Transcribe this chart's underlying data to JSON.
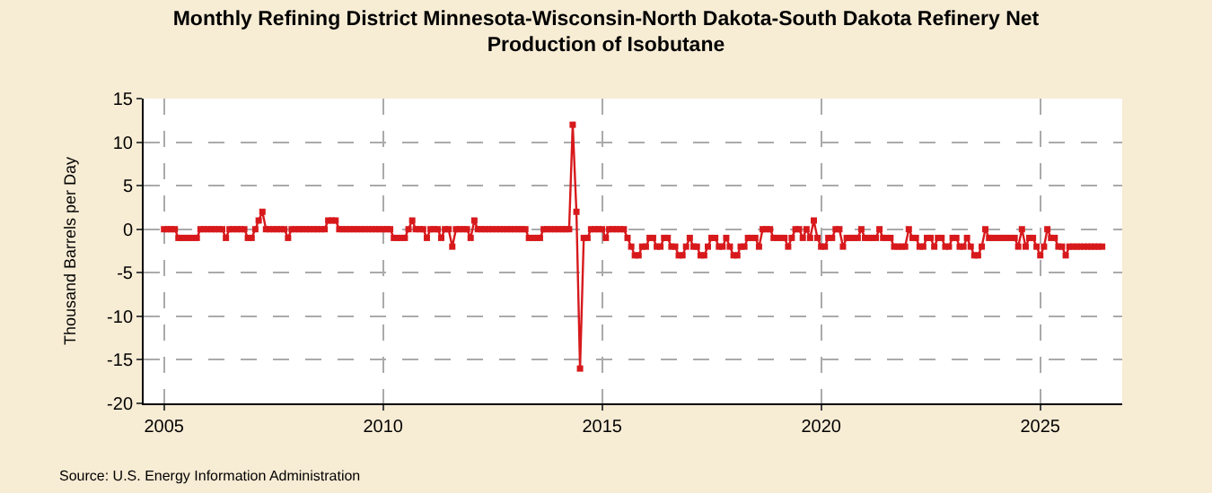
{
  "chart_data": {
    "type": "line",
    "title": "Monthly Refining District Minnesota-Wisconsin-North Dakota-South Dakota Refinery Net Production of Isobutane",
    "ylabel": "Thousand Barrels per Day",
    "annotations": [
      "Source: U.S. Energy Information Administration"
    ],
    "x": [
      "2005-01",
      "2005-02",
      "2005-03",
      "2005-04",
      "2005-05",
      "2005-06",
      "2005-07",
      "2005-08",
      "2005-09",
      "2005-10",
      "2005-11",
      "2005-12",
      "2006-01",
      "2006-02",
      "2006-03",
      "2006-04",
      "2006-05",
      "2006-06",
      "2006-07",
      "2006-08",
      "2006-09",
      "2006-10",
      "2006-11",
      "2006-12",
      "2007-01",
      "2007-02",
      "2007-03",
      "2007-04",
      "2007-05",
      "2007-06",
      "2007-07",
      "2007-08",
      "2007-09",
      "2007-10",
      "2007-11",
      "2007-12",
      "2008-01",
      "2008-02",
      "2008-03",
      "2008-04",
      "2008-05",
      "2008-06",
      "2008-07",
      "2008-08",
      "2008-09",
      "2008-10",
      "2008-11",
      "2008-12",
      "2009-01",
      "2009-02",
      "2009-03",
      "2009-04",
      "2009-05",
      "2009-06",
      "2009-07",
      "2009-08",
      "2009-09",
      "2009-10",
      "2009-11",
      "2009-12",
      "2010-01",
      "2010-02",
      "2010-03",
      "2010-04",
      "2010-05",
      "2010-06",
      "2010-07",
      "2010-08",
      "2010-09",
      "2010-10",
      "2010-11",
      "2010-12",
      "2011-01",
      "2011-02",
      "2011-03",
      "2011-04",
      "2011-05",
      "2011-06",
      "2011-07",
      "2011-08",
      "2011-09",
      "2011-10",
      "2011-11",
      "2011-12",
      "2012-01",
      "2012-02",
      "2012-03",
      "2012-04",
      "2012-05",
      "2012-06",
      "2012-07",
      "2012-08",
      "2012-09",
      "2012-10",
      "2012-11",
      "2012-12",
      "2013-01",
      "2013-02",
      "2013-03",
      "2013-04",
      "2013-05",
      "2013-06",
      "2013-07",
      "2013-08",
      "2013-09",
      "2013-10",
      "2013-11",
      "2013-12",
      "2014-01",
      "2014-02",
      "2014-03",
      "2014-04",
      "2014-05",
      "2014-06",
      "2014-07",
      "2014-08",
      "2014-09",
      "2014-10",
      "2014-11",
      "2014-12",
      "2015-01",
      "2015-02",
      "2015-03",
      "2015-04",
      "2015-05",
      "2015-06",
      "2015-07",
      "2015-08",
      "2015-09",
      "2015-10",
      "2015-11",
      "2015-12",
      "2016-01",
      "2016-02",
      "2016-03",
      "2016-04",
      "2016-05",
      "2016-06",
      "2016-07",
      "2016-08",
      "2016-09",
      "2016-10",
      "2016-11",
      "2016-12",
      "2017-01",
      "2017-02",
      "2017-03",
      "2017-04",
      "2017-05",
      "2017-06",
      "2017-07",
      "2017-08",
      "2017-09",
      "2017-10",
      "2017-11",
      "2017-12",
      "2018-01",
      "2018-02",
      "2018-03",
      "2018-04",
      "2018-05",
      "2018-06",
      "2018-07",
      "2018-08",
      "2018-09",
      "2018-10",
      "2018-11",
      "2018-12",
      "2019-01",
      "2019-02",
      "2019-03",
      "2019-04",
      "2019-05",
      "2019-06",
      "2019-07",
      "2019-08",
      "2019-09",
      "2019-10",
      "2019-11",
      "2019-12",
      "2020-01",
      "2020-02",
      "2020-03",
      "2020-04",
      "2020-05",
      "2020-06",
      "2020-07",
      "2020-08",
      "2020-09",
      "2020-10",
      "2020-11",
      "2020-12",
      "2021-01",
      "2021-02",
      "2021-03",
      "2021-04",
      "2021-05",
      "2021-06",
      "2021-07",
      "2021-08",
      "2021-09",
      "2021-10",
      "2021-11",
      "2021-12",
      "2022-01",
      "2022-02",
      "2022-03",
      "2022-04",
      "2022-05",
      "2022-06",
      "2022-07",
      "2022-08",
      "2022-09",
      "2022-10",
      "2022-11",
      "2022-12",
      "2023-01",
      "2023-02",
      "2023-03",
      "2023-04",
      "2023-05",
      "2023-06",
      "2023-07",
      "2023-08",
      "2023-09",
      "2023-10",
      "2023-11",
      "2023-12",
      "2024-01",
      "2024-02",
      "2024-03",
      "2024-04",
      "2024-05",
      "2024-06",
      "2024-07",
      "2024-08",
      "2024-09",
      "2024-10",
      "2024-11",
      "2024-12",
      "2025-01",
      "2025-02",
      "2025-03",
      "2025-04",
      "2025-05",
      "2025-06",
      "2025-07",
      "2025-08",
      "2025-09",
      "2025-10",
      "2025-11",
      "2025-12",
      "2026-01",
      "2026-02",
      "2026-03",
      "2026-04",
      "2026-05",
      "2026-06"
    ],
    "series": [
      {
        "color": "#d7191c",
        "values": [
          0,
          0,
          0,
          0,
          -1,
          -1,
          -1,
          -1,
          -1,
          -1,
          0,
          0,
          0,
          0,
          0,
          0,
          0,
          -1,
          0,
          0,
          0,
          0,
          0,
          -1,
          -1,
          0,
          1,
          2,
          0,
          0,
          0,
          0,
          0,
          0,
          -1,
          0,
          0,
          0,
          0,
          0,
          0,
          0,
          0,
          0,
          0,
          1,
          1,
          1,
          0,
          0,
          0,
          0,
          0,
          0,
          0,
          0,
          0,
          0,
          0,
          0,
          0,
          0,
          0,
          -1,
          -1,
          -1,
          -1,
          0,
          1,
          0,
          0,
          0,
          -1,
          0,
          0,
          0,
          -1,
          0,
          0,
          -2,
          0,
          0,
          0,
          0,
          -1,
          1,
          0,
          0,
          0,
          0,
          0,
          0,
          0,
          0,
          0,
          0,
          0,
          0,
          0,
          0,
          -1,
          -1,
          -1,
          -1,
          0,
          0,
          0,
          0,
          0,
          0,
          0,
          0,
          12,
          2,
          -16,
          -1,
          -1,
          0,
          0,
          0,
          0,
          -1,
          0,
          0,
          0,
          0,
          0,
          -1,
          -2,
          -3,
          -3,
          -2,
          -2,
          -1,
          -1,
          -2,
          -2,
          -1,
          -1,
          -2,
          -2,
          -3,
          -3,
          -2,
          -1,
          -2,
          -2,
          -3,
          -3,
          -2,
          -1,
          -1,
          -2,
          -2,
          -1,
          -2,
          -3,
          -3,
          -2,
          -2,
          -1,
          -1,
          -1,
          -2,
          0,
          0,
          0,
          -1,
          -1,
          -1,
          -1,
          -2,
          -1,
          0,
          0,
          -1,
          0,
          -1,
          1,
          -1,
          -2,
          -2,
          -1,
          -1,
          0,
          0,
          -2,
          -1,
          -1,
          -1,
          -1,
          0,
          -1,
          -1,
          -1,
          -1,
          0,
          -1,
          -1,
          -1,
          -2,
          -2,
          -2,
          -2,
          0,
          -1,
          -1,
          -2,
          -2,
          -1,
          -1,
          -2,
          -1,
          -1,
          -2,
          -2,
          -1,
          -1,
          -2,
          -2,
          -1,
          -2,
          -3,
          -3,
          -2,
          0,
          -1,
          -1,
          -1,
          -1,
          -1,
          -1,
          -1,
          -1,
          -2,
          0,
          -2,
          -1,
          -1,
          -2,
          -3,
          -2,
          0,
          -1,
          -1,
          -2,
          -2,
          -3,
          -2,
          -2,
          -2,
          -2,
          -2,
          -2,
          -2,
          -2,
          -2,
          -2
        ]
      }
    ],
    "xlim": [
      "2004-07-15",
      "2026-11-15"
    ],
    "xticks": [
      {
        "value": "2005-01-01",
        "label": "2005"
      },
      {
        "value": "2010-01-01",
        "label": "2010"
      },
      {
        "value": "2015-01-01",
        "label": "2015"
      },
      {
        "value": "2020-01-01",
        "label": "2020"
      },
      {
        "value": "2025-01-01",
        "label": "2025"
      }
    ],
    "ylim": [
      -20,
      15
    ],
    "yticks": [
      -20,
      -15,
      -10,
      -5,
      0,
      5,
      10,
      15
    ],
    "grid": true,
    "marker": "square",
    "line_style": "solid"
  }
}
